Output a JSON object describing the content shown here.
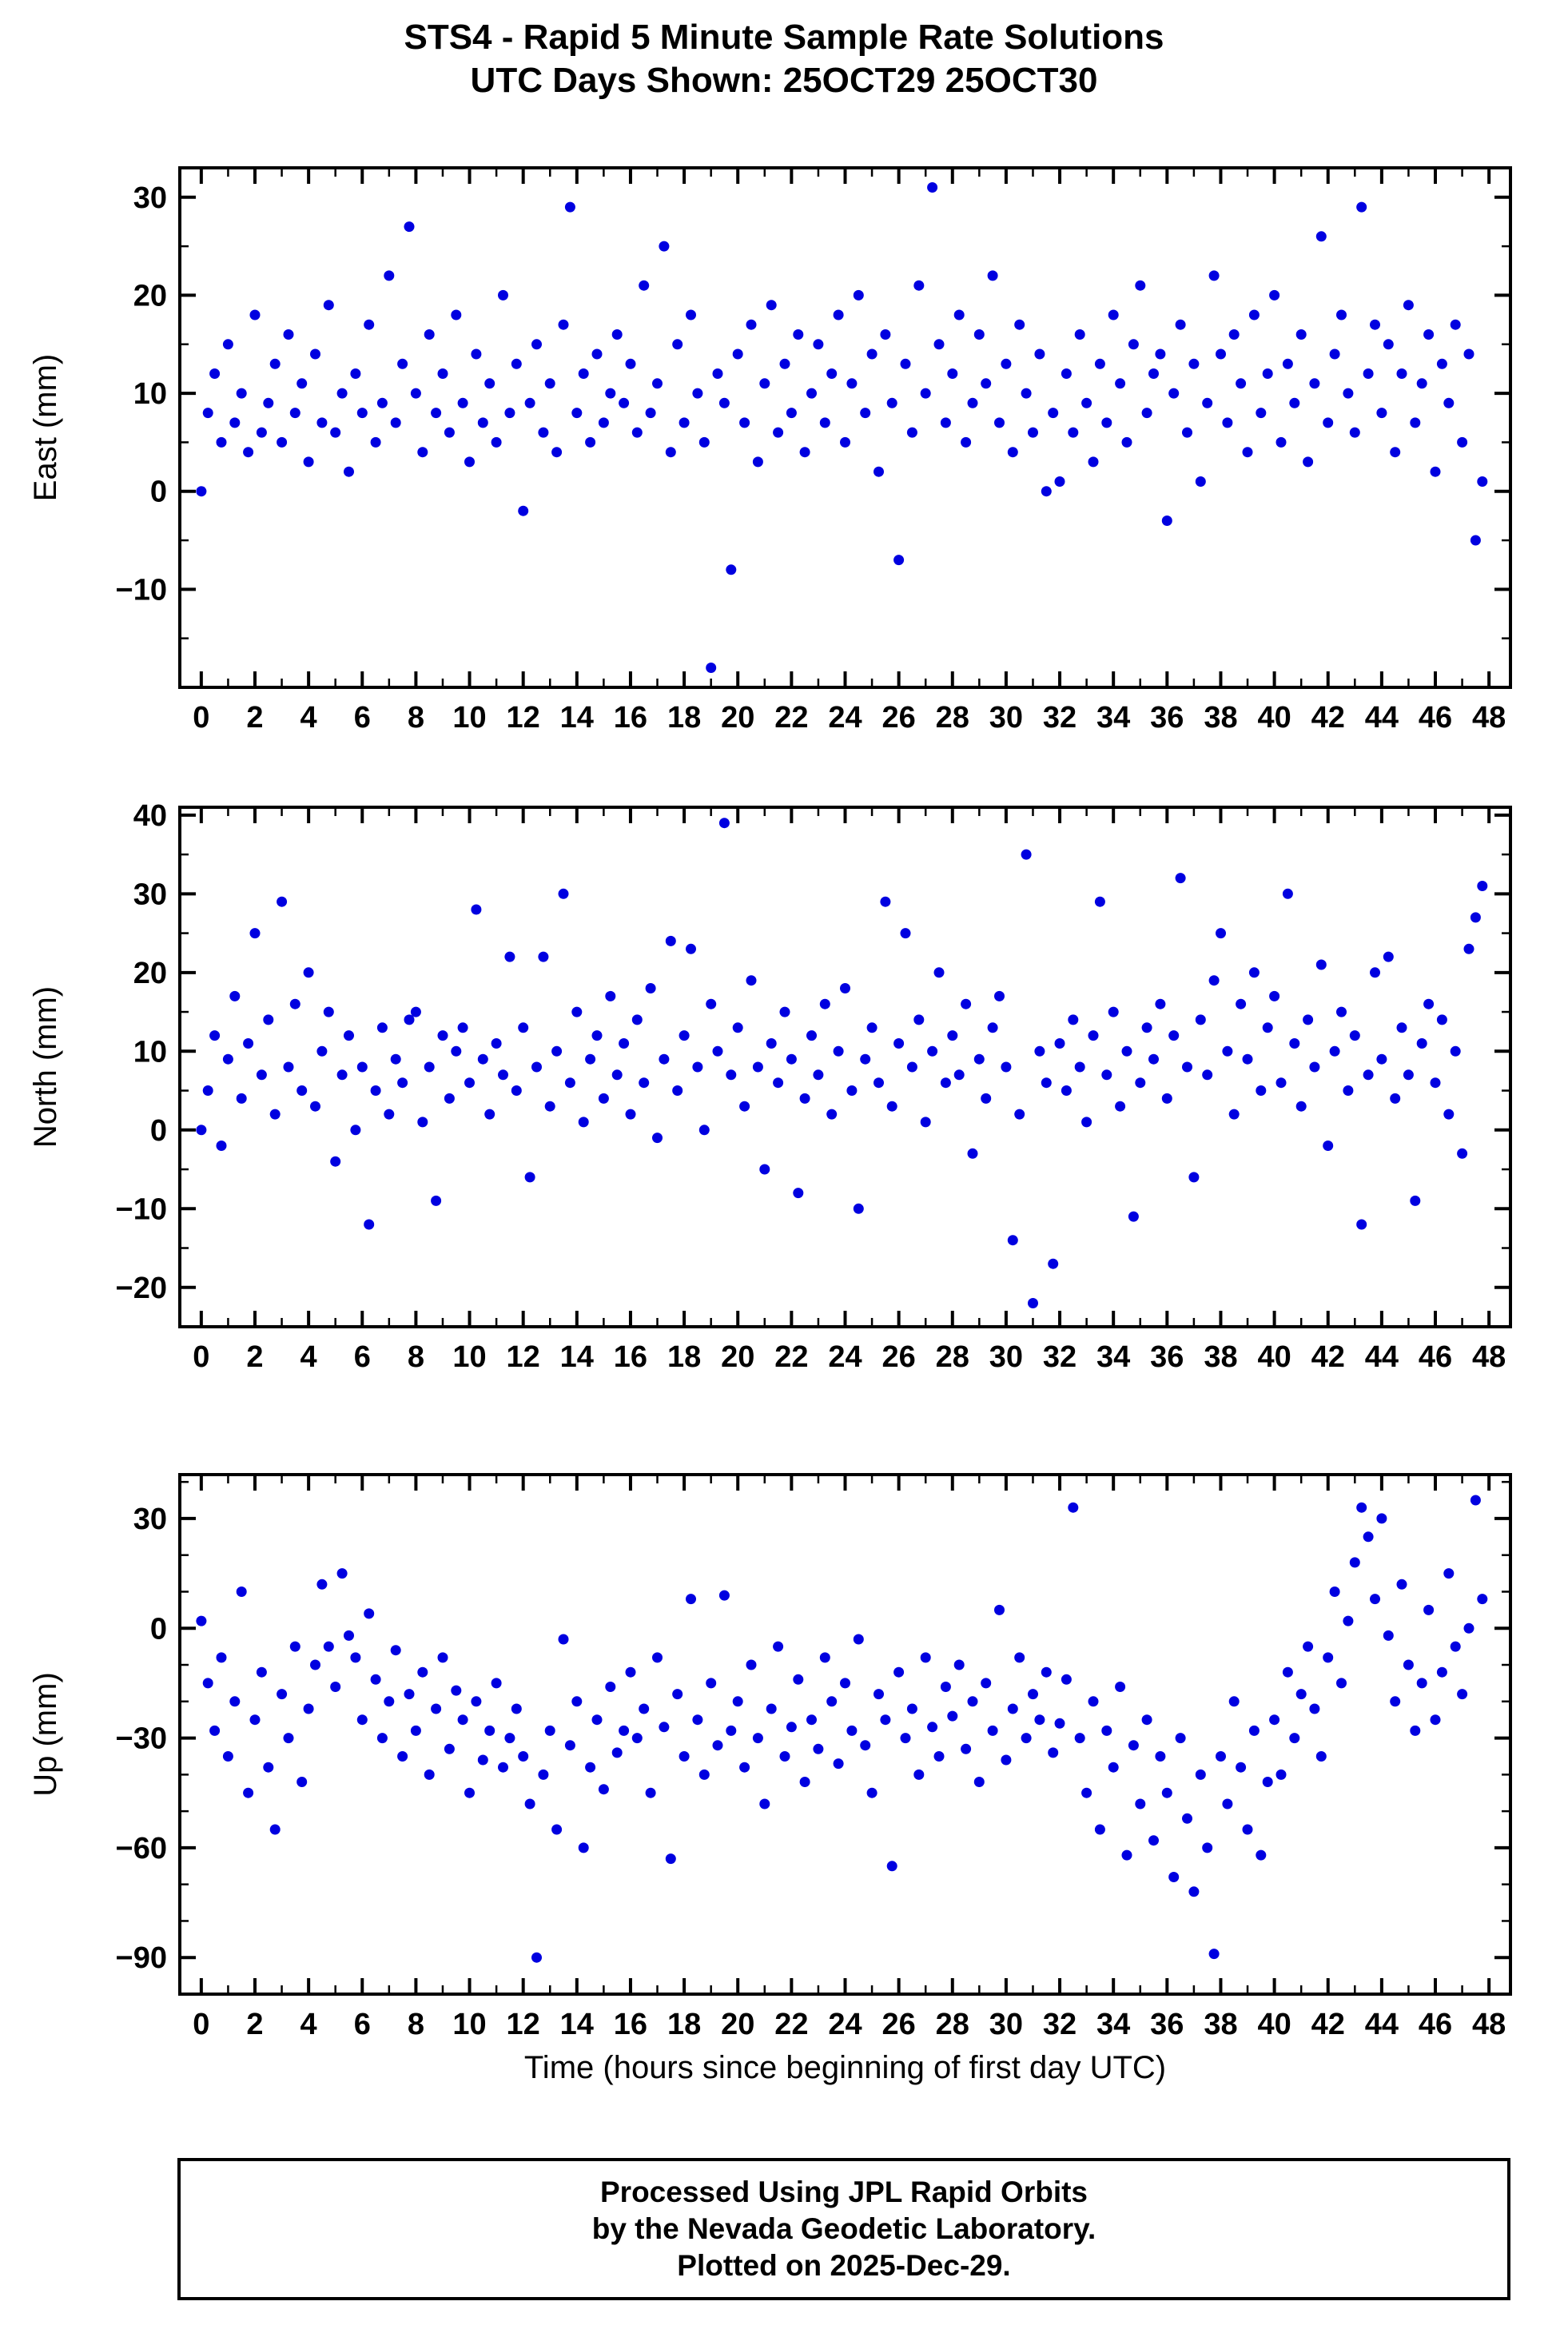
{
  "title": "STS4 - Rapid 5 Minute Sample Rate Solutions",
  "subtitle": "UTC Days Shown:  25OCT29 25OCT30",
  "footer": {
    "lines": [
      "Processed Using JPL Rapid Orbits",
      "by the Nevada Geodetic Laboratory.",
      "Plotted on 2025-Dec-29."
    ]
  },
  "chart_data": {
    "type": "scatter",
    "title": "STS4 - Rapid 5 Minute Sample Rate Solutions",
    "subtitle": "UTC Days Shown:  25OCT29 25OCT30",
    "xlabel": "Time (hours since beginning of first day UTC)",
    "point_color": "#0000e0",
    "x_start": 0,
    "x_step": 0.25,
    "xlim": [
      -0.8,
      48.8
    ],
    "x_ticks": {
      "min": 0,
      "max": 48,
      "major_step": 2,
      "minor_step": 1
    },
    "panels": [
      {
        "name": "East",
        "ylabel": "East (mm)",
        "ylim": [
          -20,
          33
        ],
        "ytick_major": [
          -10,
          0,
          10,
          20,
          30
        ],
        "ytick_minor_step": 5,
        "values": [
          0,
          8,
          12,
          5,
          15,
          7,
          10,
          4,
          18,
          6,
          9,
          13,
          5,
          16,
          8,
          11,
          3,
          14,
          7,
          19,
          6,
          10,
          2,
          12,
          8,
          17,
          5,
          9,
          22,
          7,
          13,
          27,
          10,
          4,
          16,
          8,
          12,
          6,
          18,
          9,
          3,
          14,
          7,
          11,
          5,
          20,
          8,
          13,
          -2,
          9,
          15,
          6,
          11,
          4,
          17,
          29,
          8,
          12,
          5,
          14,
          7,
          10,
          16,
          9,
          13,
          6,
          21,
          8,
          11,
          25,
          4,
          15,
          7,
          18,
          10,
          5,
          -18,
          12,
          9,
          -8,
          14,
          7,
          17,
          3,
          11,
          19,
          6,
          13,
          8,
          16,
          4,
          10,
          15,
          7,
          12,
          18,
          5,
          11,
          20,
          8,
          14,
          2,
          16,
          9,
          -7,
          13,
          6,
          21,
          10,
          31,
          15,
          7,
          12,
          18,
          5,
          9,
          16,
          11,
          22,
          7,
          13,
          4,
          17,
          10,
          6,
          14,
          0,
          8,
          1,
          12,
          6,
          16,
          9,
          3,
          13,
          7,
          18,
          11,
          5,
          15,
          21,
          8,
          12,
          14,
          -3,
          10,
          17,
          6,
          13,
          1,
          9,
          22,
          14,
          7,
          16,
          11,
          4,
          18,
          8,
          12,
          20,
          5,
          13,
          9,
          16,
          3,
          11,
          26,
          7,
          14,
          18,
          10,
          6,
          29,
          12,
          17,
          8,
          15,
          4,
          12,
          19,
          7,
          11,
          16,
          2,
          13,
          9,
          17,
          5,
          14,
          -5,
          1
        ]
      },
      {
        "name": "North",
        "ylabel": "North (mm)",
        "ylim": [
          -25,
          41
        ],
        "ytick_major": [
          -20,
          -10,
          0,
          10,
          20,
          30,
          40
        ],
        "ytick_minor_step": 5,
        "values": [
          0,
          5,
          12,
          -2,
          9,
          17,
          4,
          11,
          25,
          7,
          14,
          2,
          29,
          8,
          16,
          5,
          20,
          3,
          10,
          15,
          -4,
          7,
          12,
          0,
          8,
          -12,
          5,
          13,
          2,
          9,
          6,
          14,
          15,
          1,
          8,
          -9,
          12,
          4,
          10,
          13,
          6,
          28,
          9,
          2,
          11,
          7,
          22,
          5,
          13,
          -6,
          8,
          22,
          3,
          10,
          30,
          6,
          15,
          1,
          9,
          12,
          4,
          17,
          7,
          11,
          2,
          14,
          6,
          18,
          -1,
          9,
          24,
          5,
          12,
          23,
          8,
          0,
          16,
          10,
          39,
          7,
          13,
          3,
          19,
          8,
          -5,
          11,
          6,
          15,
          9,
          -8,
          4,
          12,
          7,
          16,
          2,
          10,
          18,
          5,
          -10,
          9,
          13,
          6,
          29,
          3,
          11,
          25,
          8,
          14,
          1,
          10,
          20,
          6,
          12,
          7,
          16,
          -3,
          9,
          4,
          13,
          17,
          8,
          -14,
          2,
          35,
          -22,
          10,
          6,
          -17,
          11,
          5,
          14,
          8,
          1,
          12,
          29,
          7,
          15,
          3,
          10,
          -11,
          6,
          13,
          9,
          16,
          4,
          12,
          32,
          8,
          -6,
          14,
          7,
          19,
          25,
          10,
          2,
          16,
          9,
          20,
          5,
          13,
          17,
          6,
          30,
          11,
          3,
          14,
          8,
          21,
          -2,
          10,
          15,
          5,
          12,
          -12,
          7,
          20,
          9,
          22,
          4,
          13,
          7,
          -9,
          11,
          16,
          6,
          14,
          2,
          10,
          -3,
          23,
          27,
          31
        ]
      },
      {
        "name": "Up",
        "ylabel": "Up (mm)",
        "ylim": [
          -100,
          42
        ],
        "ytick_major": [
          -90,
          -60,
          -30,
          0,
          30
        ],
        "ytick_minor_step": 10,
        "values": [
          2,
          -15,
          -28,
          -8,
          -35,
          -20,
          10,
          -45,
          -25,
          -12,
          -38,
          -55,
          -18,
          -30,
          -5,
          -42,
          -22,
          -10,
          12,
          -5,
          -16,
          15,
          -2,
          -8,
          -25,
          4,
          -14,
          -30,
          -20,
          -6,
          -35,
          -18,
          -28,
          -12,
          -40,
          -22,
          -8,
          -33,
          -17,
          -25,
          -45,
          -20,
          -36,
          -28,
          -15,
          -38,
          -30,
          -22,
          -35,
          -48,
          -90,
          -40,
          -28,
          -55,
          -3,
          -32,
          -20,
          -60,
          -38,
          -25,
          -44,
          -16,
          -34,
          -28,
          -12,
          -30,
          -22,
          -45,
          -8,
          -27,
          -63,
          -18,
          -35,
          8,
          -25,
          -40,
          -15,
          -32,
          9,
          -28,
          -20,
          -38,
          -10,
          -30,
          -48,
          -22,
          -5,
          -35,
          -27,
          -14,
          -42,
          -25,
          -33,
          -8,
          -20,
          -37,
          -15,
          -28,
          -3,
          -32,
          -45,
          -18,
          -25,
          -65,
          -12,
          -30,
          -22,
          -40,
          -8,
          -27,
          -35,
          -16,
          -24,
          -10,
          -33,
          -20,
          -42,
          -15,
          -28,
          5,
          -36,
          -22,
          -8,
          -30,
          -18,
          -25,
          -12,
          -34,
          -26,
          -14,
          33,
          -30,
          -45,
          -20,
          -55,
          -28,
          -38,
          -16,
          -62,
          -32,
          -48,
          -25,
          -58,
          -35,
          -45,
          -68,
          -30,
          -52,
          -72,
          -40,
          -60,
          -89,
          -35,
          -48,
          -20,
          -38,
          -55,
          -28,
          -62,
          -42,
          -25,
          -40,
          -12,
          -30,
          -18,
          -5,
          -22,
          -35,
          -8,
          10,
          -15,
          2,
          18,
          33,
          25,
          8,
          30,
          -2,
          -20,
          12,
          -10,
          -28,
          -15,
          5,
          -25,
          -12,
          15,
          -5,
          -18,
          0,
          35,
          8
        ]
      }
    ]
  }
}
